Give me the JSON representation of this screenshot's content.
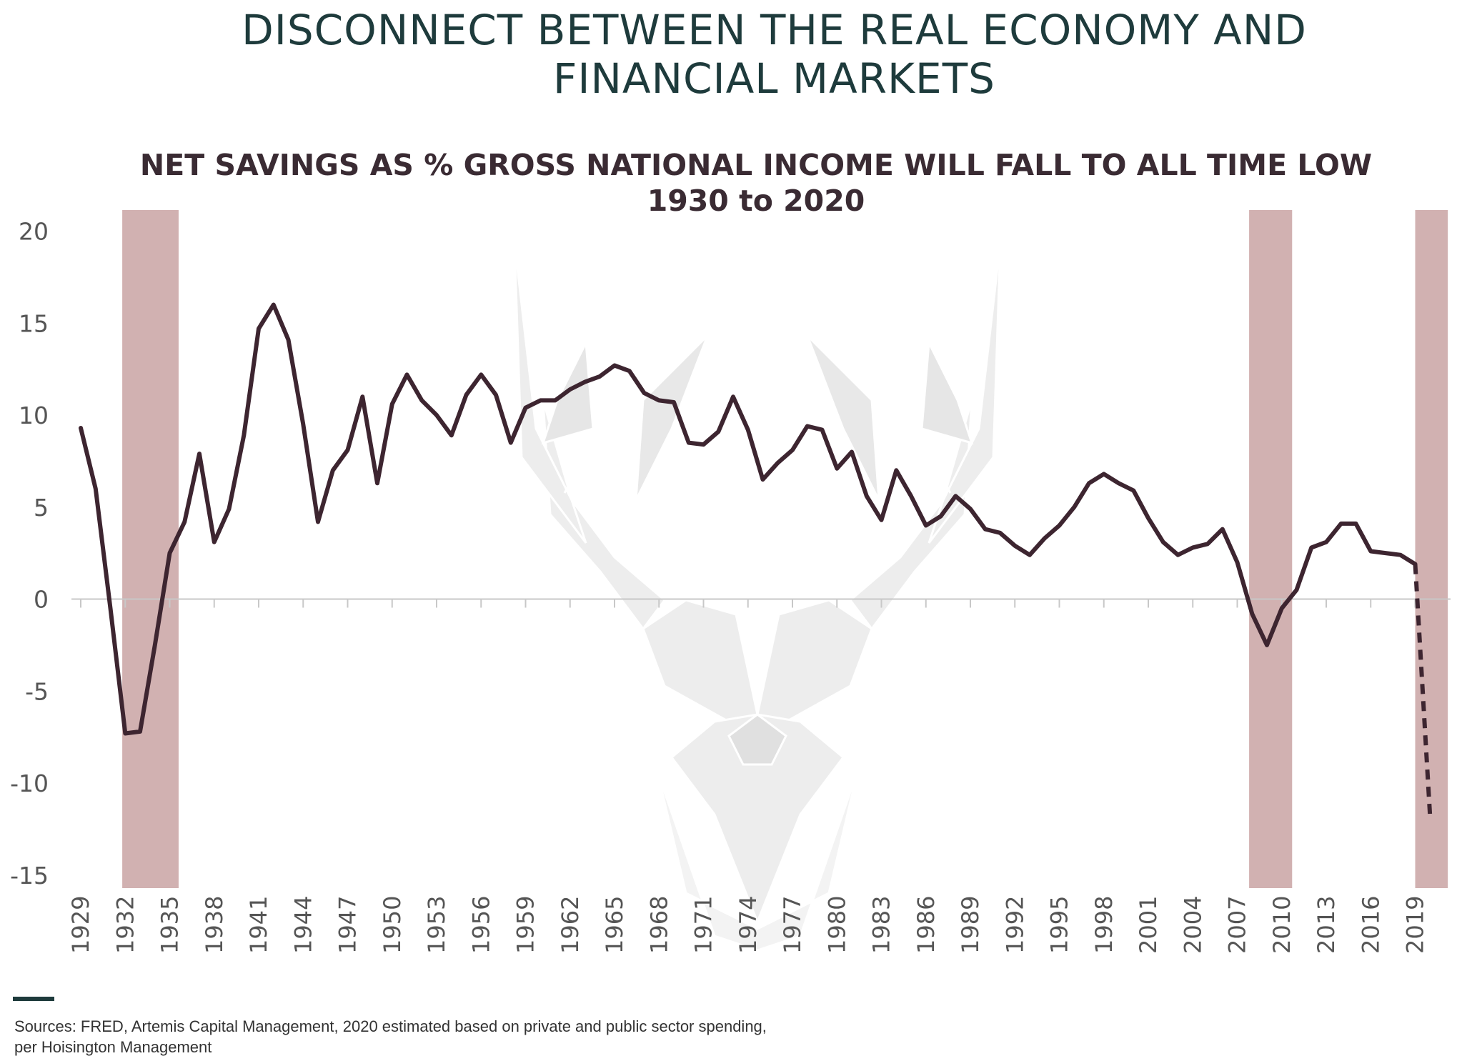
{
  "page": {
    "title_lines": [
      "DISCONNECT BETWEEN THE REAL ECONOMY AND",
      "FINANCIAL MARKETS"
    ],
    "source_note": "Sources: FRED, Artemis Capital Management, 2020 estimated based on private and public sector spending, per Hoisington Management"
  },
  "colors": {
    "title": "#1e3b3c",
    "chart_title": "#3a2b33",
    "line": "#3d2530",
    "recession_band": "#d1b1b1",
    "zero_line": "#c8c8c8",
    "axis_text": "#555555",
    "watermark": "#e9e9e9"
  },
  "watermark": {
    "icon": "stag-head-icon"
  },
  "chart_data": {
    "type": "line",
    "title": "NET SAVINGS AS % GROSS NATIONAL INCOME WILL FALL TO ALL TIME LOW",
    "subtitle": "1930 to 2020",
    "xlabel": "",
    "ylabel": "",
    "ylim": [
      -15,
      20
    ],
    "yticks": [
      20,
      15,
      10,
      5,
      0,
      -5,
      -10,
      -15
    ],
    "xlim": [
      1929,
      2020
    ],
    "xticks": [
      1929,
      1932,
      1935,
      1938,
      1941,
      1944,
      1947,
      1950,
      1953,
      1956,
      1959,
      1962,
      1965,
      1968,
      1971,
      1974,
      1977,
      1980,
      1983,
      1986,
      1989,
      1992,
      1995,
      1998,
      2001,
      2004,
      2007,
      2010,
      2013,
      2016,
      2019
    ],
    "grid": false,
    "legend": "none",
    "recession_shading": [
      {
        "start": 1931.8,
        "end": 1935.6
      },
      {
        "start": 2007.8,
        "end": 2010.7
      },
      {
        "start": 2019.0,
        "end": 2021.2
      }
    ],
    "series": [
      {
        "style": "solid",
        "x": [
          1929,
          1930,
          1931,
          1932,
          1933,
          1934,
          1935,
          1936,
          1937,
          1938,
          1939,
          1940,
          1941,
          1942,
          1943,
          1944,
          1945,
          1946,
          1947,
          1948,
          1949,
          1950,
          1951,
          1952,
          1953,
          1954,
          1955,
          1956,
          1957,
          1958,
          1959,
          1960,
          1961,
          1962,
          1963,
          1964,
          1965,
          1966,
          1967,
          1968,
          1969,
          1970,
          1971,
          1972,
          1973,
          1974,
          1975,
          1976,
          1977,
          1978,
          1979,
          1980,
          1981,
          1982,
          1983,
          1984,
          1985,
          1986,
          1987,
          1988,
          1989,
          1990,
          1991,
          1992,
          1993,
          1994,
          1995,
          1996,
          1997,
          1998,
          1999,
          2000,
          2001,
          2002,
          2003,
          2004,
          2005,
          2006,
          2007,
          2008,
          2009,
          2010,
          2011,
          2012,
          2013,
          2014,
          2015,
          2016,
          2017,
          2018,
          2019
        ],
        "y": [
          9.3,
          6.0,
          -0.5,
          -7.3,
          -7.2,
          -2.5,
          2.5,
          4.2,
          7.9,
          3.1,
          4.9,
          8.9,
          14.7,
          16.0,
          14.1,
          9.5,
          4.2,
          7.0,
          8.1,
          11.0,
          6.3,
          10.6,
          12.2,
          10.8,
          10.0,
          8.9,
          11.1,
          12.2,
          11.1,
          8.5,
          10.4,
          10.8,
          10.8,
          11.4,
          11.8,
          12.1,
          12.7,
          12.4,
          11.2,
          10.8,
          10.7,
          8.5,
          8.4,
          9.1,
          11.0,
          9.2,
          6.5,
          7.4,
          8.1,
          9.4,
          9.2,
          7.1,
          8.0,
          5.6,
          4.3,
          7.0,
          5.6,
          4.0,
          4.5,
          5.6,
          4.9,
          3.8,
          3.6,
          2.9,
          2.4,
          3.3,
          4.0,
          5.0,
          6.3,
          6.8,
          6.3,
          5.9,
          4.4,
          3.1,
          2.4,
          2.8,
          3.0,
          3.8,
          2.0,
          -0.8,
          -2.5,
          -0.5,
          0.5,
          2.8,
          3.1,
          4.1,
          4.1,
          2.6,
          2.5,
          2.4,
          1.9
        ]
      },
      {
        "style": "dashed",
        "x": [
          2019,
          2020
        ],
        "y": [
          1.9,
          -11.8
        ]
      }
    ]
  }
}
